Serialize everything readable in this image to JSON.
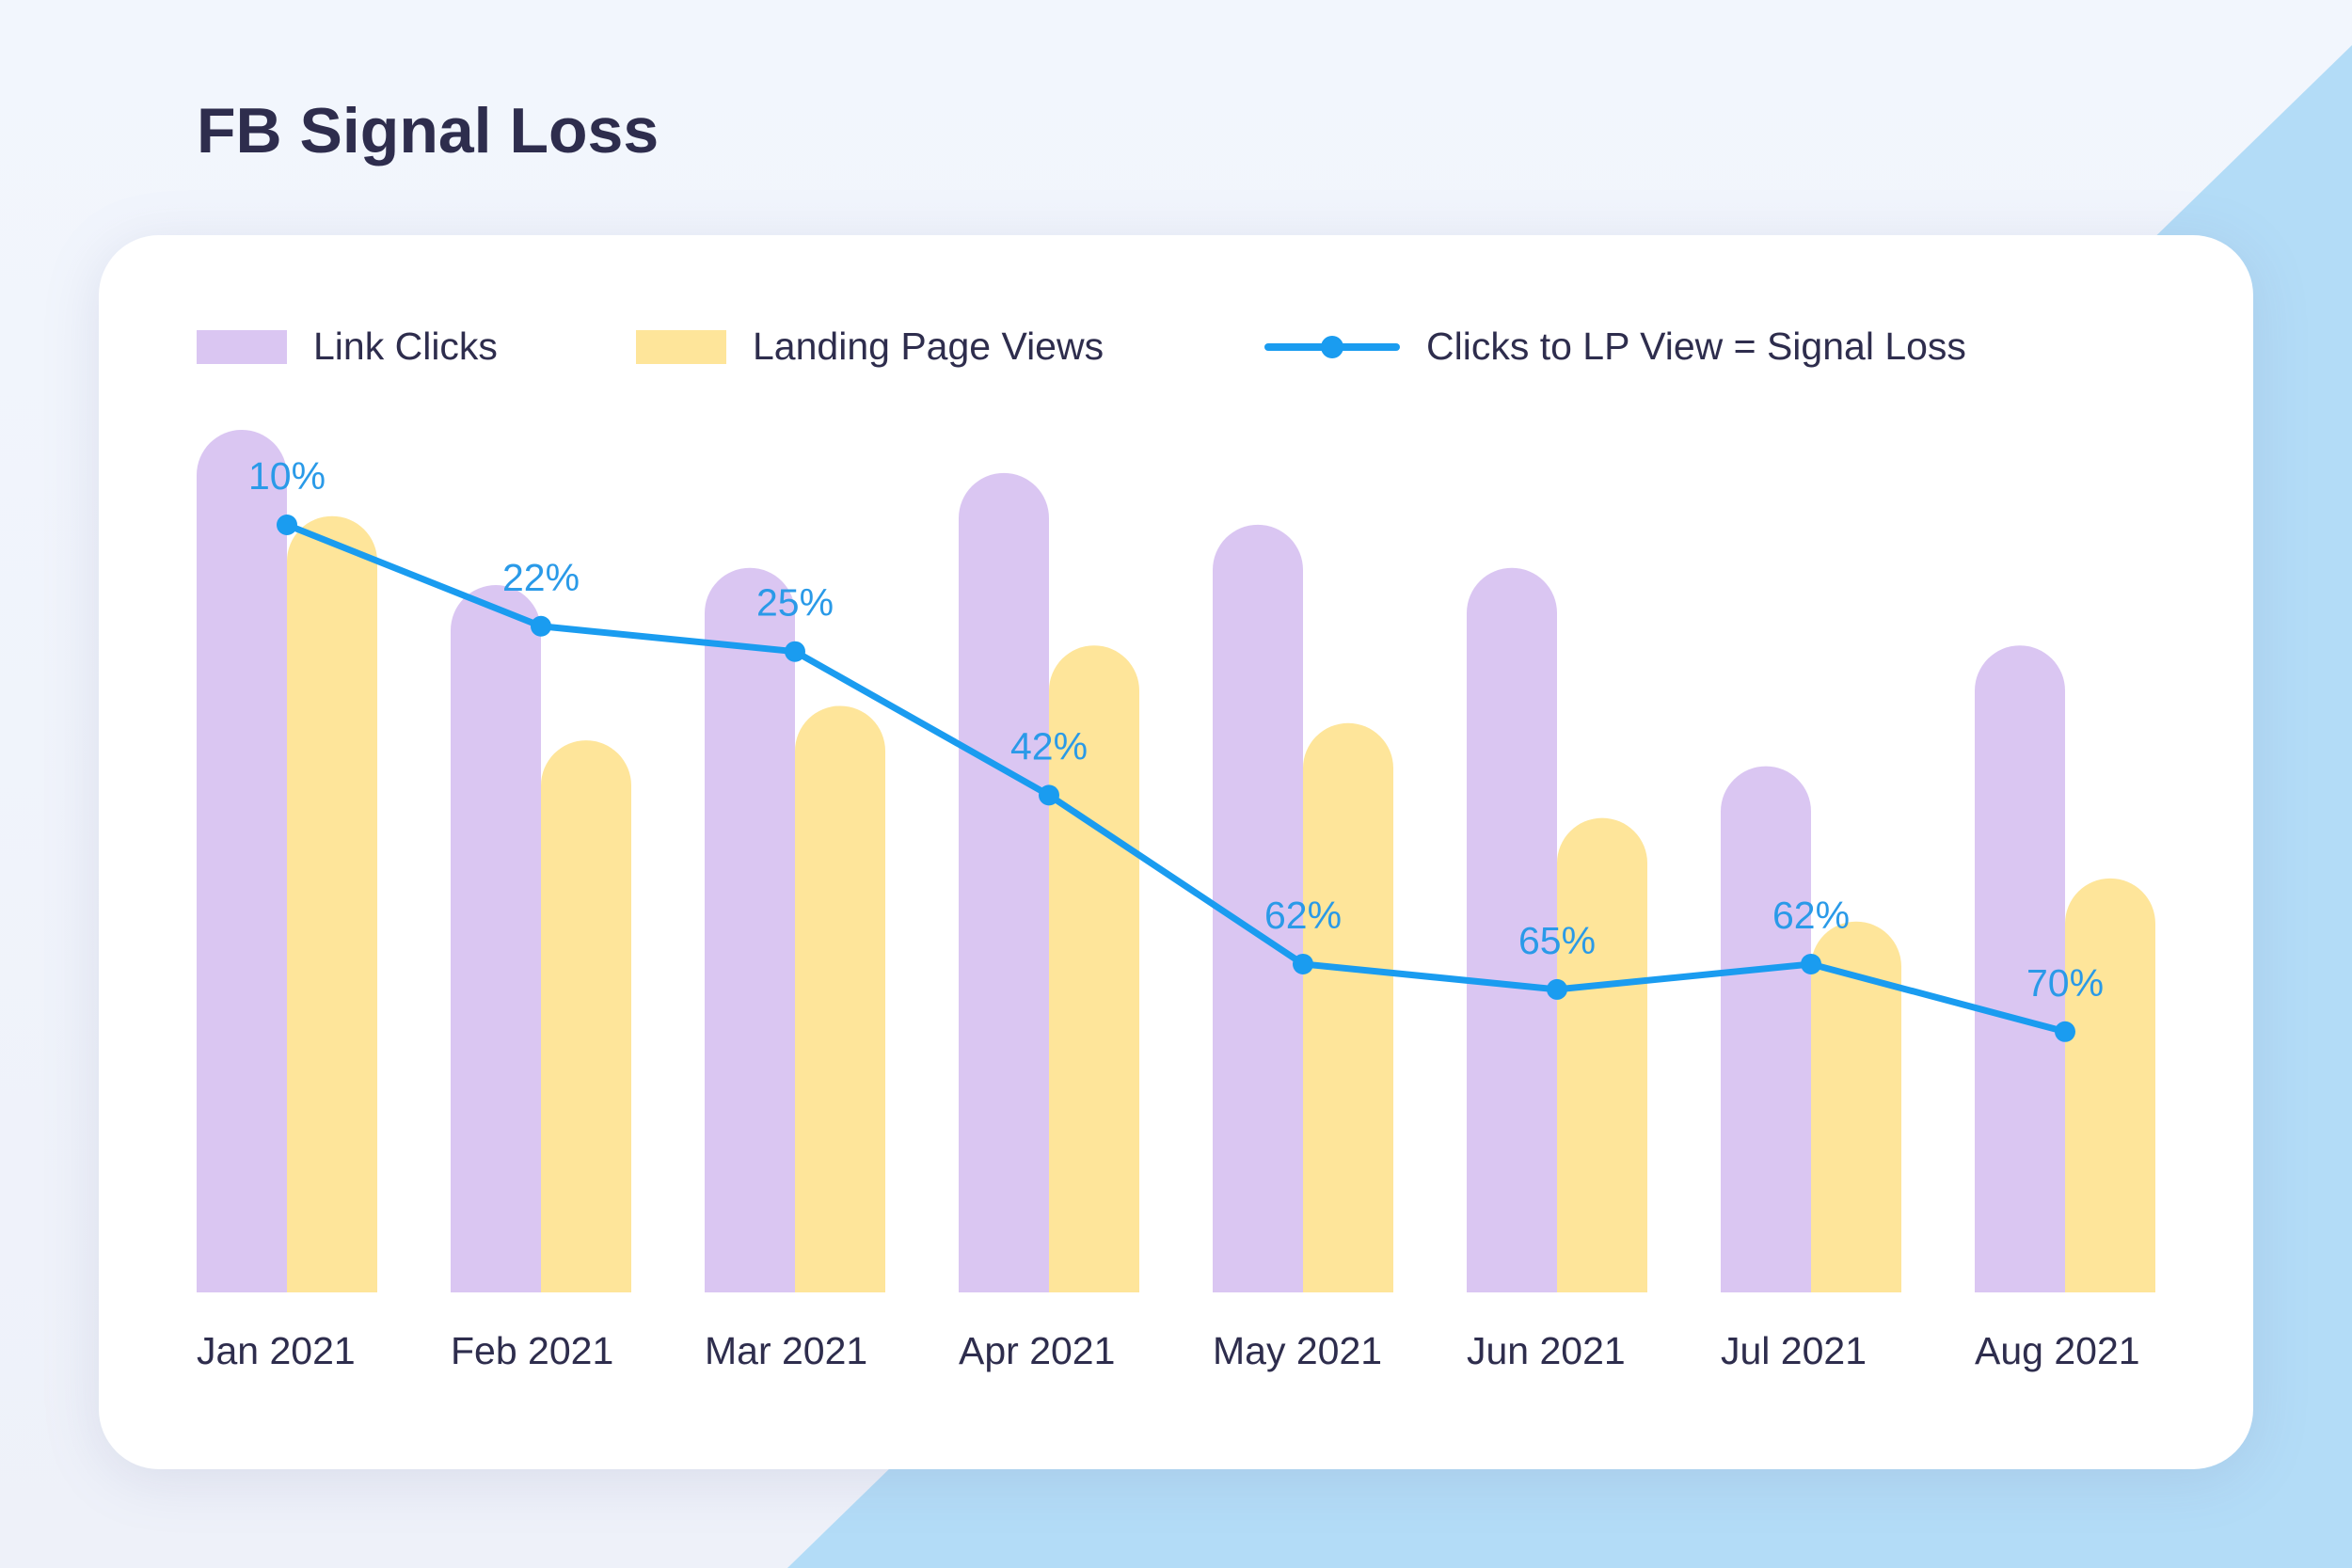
{
  "title": "FB Signal Loss",
  "colors": {
    "link_clicks": "#dac6f2",
    "landing_page_views": "#fee59a",
    "signal_loss": "#1a9cf0",
    "label": "#2a9ae8"
  },
  "chart_data": {
    "type": "bar",
    "title": "FB Signal Loss",
    "categories": [
      "Jan 2021",
      "Feb 2021",
      "Mar 2021",
      "Apr 2021",
      "May 2021",
      "Jun 2021",
      "Jul 2021",
      "Aug 2021"
    ],
    "series": [
      {
        "name": "Link Clicks",
        "type": "bar",
        "values": [
          100,
          82,
          84,
          95,
          89,
          84,
          61,
          75
        ]
      },
      {
        "name": "Landing Page Views",
        "type": "bar",
        "values": [
          90,
          64,
          68,
          75,
          66,
          55,
          43,
          48
        ]
      },
      {
        "name": "Clicks to LP View = Signal Loss",
        "type": "line",
        "values": [
          10,
          22,
          25,
          42,
          62,
          65,
          62,
          70
        ],
        "labels": [
          "10%",
          "22%",
          "25%",
          "42%",
          "62%",
          "65%",
          "62%",
          "70%"
        ]
      }
    ],
    "bar_scale_note": "relative index, no y-axis shown",
    "xlabel": "",
    "ylabel": "",
    "grid": false,
    "legend": "top-left"
  }
}
